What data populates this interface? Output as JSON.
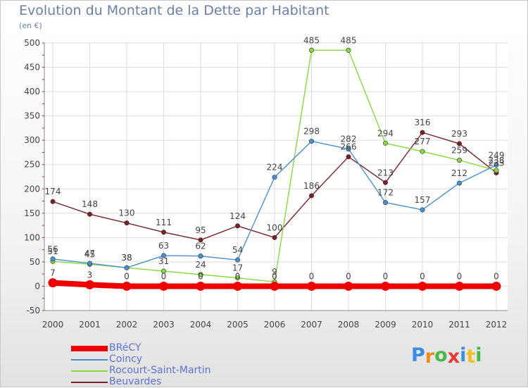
{
  "chart_data": {
    "type": "line",
    "title": "Evolution du Montant de la Dette par Habitant",
    "unit_label": "(en €)",
    "xlabel": "",
    "ylabel": "",
    "x": [
      "2000",
      "2001",
      "2002",
      "2003",
      "2004",
      "2005",
      "2006",
      "2007",
      "2008",
      "2009",
      "2010",
      "2011",
      "2012"
    ],
    "ylim": [
      -50,
      500
    ],
    "yticks": [
      -50,
      0,
      50,
      100,
      150,
      200,
      250,
      300,
      350,
      400,
      450,
      500
    ],
    "grid": true,
    "legend_position": "bottom-left",
    "series": [
      {
        "name": "BRéCY",
        "color": "#ee0000",
        "values": [
          7,
          3,
          0,
          0,
          0,
          0,
          0,
          0,
          0,
          0,
          0,
          0,
          0
        ],
        "labels": [
          "7",
          "3",
          "0",
          "0",
          "0",
          "0",
          "0",
          "0",
          "0",
          "0",
          "0",
          "0",
          "0"
        ]
      },
      {
        "name": "Coincy",
        "color": "#4a90d0",
        "values": [
          56,
          47,
          38,
          63,
          62,
          54,
          224,
          298,
          282,
          172,
          157,
          212,
          249
        ],
        "labels": [
          "56",
          "47",
          "38",
          "63",
          "62",
          "54",
          "224",
          "298",
          "282",
          "172",
          "157",
          "212",
          "249"
        ]
      },
      {
        "name": "Rocourt-Saint-Martin",
        "color": "#88d840",
        "values": [
          51,
          45,
          38,
          31,
          24,
          17,
          9,
          485,
          485,
          294,
          277,
          259,
          238
        ],
        "labels": [
          "51",
          "45",
          "38",
          "31",
          "24",
          "17",
          "9",
          "485",
          "485",
          "294",
          "277",
          "259",
          "238"
        ]
      },
      {
        "name": "Beuvardes",
        "color": "#7a2028",
        "values": [
          174,
          148,
          130,
          111,
          95,
          124,
          100,
          186,
          266,
          213,
          316,
          293,
          233
        ],
        "labels": [
          "174",
          "148",
          "130",
          "111",
          "95",
          "124",
          "100",
          "186",
          "266",
          "213",
          "316",
          "293",
          "233"
        ]
      }
    ]
  },
  "logo": {
    "letters": [
      "P",
      "r",
      "o",
      "x",
      "i",
      "t",
      "i"
    ],
    "colors": [
      "#3a8de0",
      "#f08a1a",
      "#48b848",
      "#e83a3a",
      "#3a8de0",
      "#f0c020",
      "#48b848"
    ]
  }
}
